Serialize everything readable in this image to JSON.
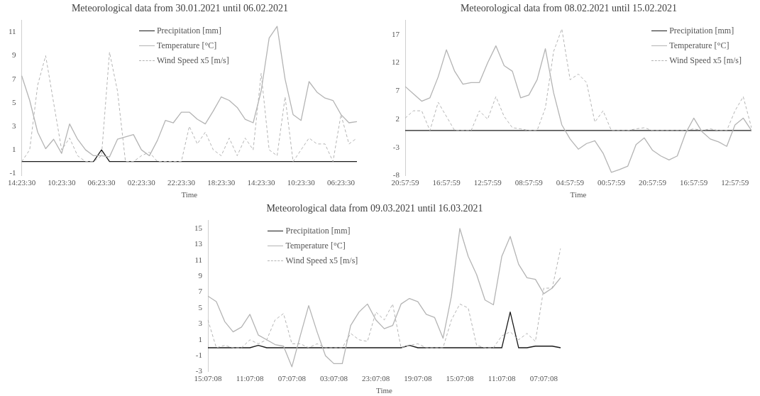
{
  "chart_data": [
    {
      "type": "line",
      "title": "Meteorological data from 30.01.2021 until 06.02.2021",
      "xlabel": "Time",
      "legend": "top",
      "ylim": [
        -1.2,
        12
      ],
      "yticks": [
        -1,
        1,
        3,
        5,
        7,
        9,
        11
      ],
      "categories": [
        "14:23:30",
        null,
        null,
        null,
        null,
        "10:23:30",
        null,
        null,
        null,
        null,
        "06:23:30",
        null,
        null,
        null,
        null,
        "02:23:30",
        null,
        null,
        null,
        null,
        "22:23:30",
        null,
        null,
        null,
        null,
        "18:23:30",
        null,
        null,
        null,
        null,
        "14:23:30",
        null,
        null,
        null,
        null,
        "10:23:30",
        null,
        null,
        null,
        null,
        "06:23:30",
        null,
        null
      ],
      "series": [
        {
          "name": "Precipitation [mm]",
          "color": "#1a1a1a",
          "line_style": "solid",
          "values": [
            0,
            0,
            0,
            0,
            0,
            0,
            0,
            0,
            0,
            0,
            1.0,
            0,
            0,
            0,
            0,
            0,
            0,
            0,
            0,
            0,
            0,
            0,
            0,
            0,
            0,
            0,
            0,
            0,
            0,
            0,
            0,
            0,
            0,
            0,
            0,
            0,
            0,
            0,
            0,
            0,
            0,
            0,
            0
          ]
        },
        {
          "name": "Temperature [°C]",
          "color": "#b4b4b4",
          "line_style": "solid",
          "values": [
            7.3,
            5.2,
            2.5,
            1.1,
            1.9,
            0.7,
            3.2,
            1.9,
            1.0,
            0.5,
            0.5,
            0.4,
            1.9,
            2.1,
            2.3,
            1.0,
            0.5,
            1.8,
            3.5,
            3.3,
            4.2,
            4.2,
            3.6,
            3.2,
            4.3,
            5.5,
            5.2,
            4.6,
            3.6,
            3.3,
            6.0,
            10.5,
            11.5,
            7.0,
            4.0,
            3.5,
            6.8,
            5.9,
            5.4,
            5.2,
            4.0,
            3.3,
            3.4
          ]
        },
        {
          "name": "Wind Speed x5 [m/s]",
          "color": "#b4b4b4",
          "line_style": "dashed",
          "values": [
            0,
            1.0,
            6.5,
            9,
            5,
            1,
            2,
            0.5,
            0,
            0,
            0.5,
            9.3,
            6,
            0,
            0,
            0.5,
            0.8,
            0,
            0,
            0,
            0,
            3,
            1.5,
            2.5,
            1,
            0.5,
            2,
            0.5,
            2,
            1,
            7.5,
            1.0,
            0.5,
            5.5,
            0,
            1.0,
            2.0,
            1.5,
            1.5,
            0,
            4,
            1.5,
            2.0
          ]
        }
      ]
    },
    {
      "type": "line",
      "title": "Meteorological data from 08.02.2021 until 15.02.2021",
      "xlabel": "Time",
      "legend": "top right",
      "ylim": [
        -8,
        19.5
      ],
      "yticks": [
        -8,
        -3,
        2,
        7,
        12,
        17
      ],
      "categories": [
        "20:57:59",
        null,
        null,
        null,
        null,
        "16:57:59",
        null,
        null,
        null,
        null,
        "12:57:59",
        null,
        null,
        null,
        null,
        "08:57:59",
        null,
        null,
        null,
        null,
        "04:57:59",
        null,
        null,
        null,
        null,
        "00:57:59",
        null,
        null,
        null,
        null,
        "20:57:59",
        null,
        null,
        null,
        null,
        "16:57:59",
        null,
        null,
        null,
        null,
        "12:57:59",
        null,
        null
      ],
      "series": [
        {
          "name": "Precipitation [mm]",
          "color": "#1a1a1a",
          "line_style": "solid",
          "values": [
            0,
            0,
            0,
            0,
            0,
            0,
            0,
            0,
            0,
            0,
            0,
            0,
            0,
            0,
            0,
            0,
            0,
            0,
            0,
            0,
            0,
            0,
            0,
            0,
            0,
            0,
            0,
            0,
            0,
            0,
            0,
            0,
            0,
            0,
            0,
            0,
            0,
            0,
            0,
            0,
            0,
            0,
            0
          ]
        },
        {
          "name": "Temperature [°C]",
          "color": "#b4b4b4",
          "line_style": "solid",
          "values": [
            7.8,
            6.5,
            5.2,
            5.8,
            9.5,
            14.3,
            10.5,
            8.2,
            8.5,
            8.5,
            12,
            15.0,
            11.5,
            10.5,
            5.8,
            6.3,
            9.0,
            14.5,
            6.7,
            1.0,
            -1.5,
            -3.3,
            -2.3,
            -1.8,
            -4.0,
            -7.4,
            -6.9,
            -6.3,
            -2.5,
            -1.3,
            -3.5,
            -4.5,
            -5.2,
            -4.5,
            -0.5,
            2.2,
            -0.2,
            -1.5,
            -2.0,
            -2.8,
            1.0,
            2.2,
            0
          ]
        },
        {
          "name": "Wind Speed x5 [m/s]",
          "color": "#b4b4b4",
          "line_style": "dashed",
          "values": [
            2.2,
            3.5,
            3.5,
            0,
            5.0,
            2.5,
            0,
            0,
            0,
            3.5,
            2.0,
            6,
            2.5,
            0.5,
            0.3,
            0,
            0,
            4,
            14,
            18,
            9,
            10,
            8.5,
            1.5,
            3.5,
            0,
            0,
            0,
            0.3,
            0.5,
            0,
            0,
            0,
            0,
            0,
            0.3,
            0,
            0.3,
            0,
            0,
            3.5,
            6,
            0.5
          ]
        }
      ]
    },
    {
      "type": "line",
      "title": "Meteorological data from 09.03.2021 until 16.03.2021",
      "xlabel": "Time",
      "legend": "top left",
      "ylim": [
        -3,
        16
      ],
      "yticks": [
        -3,
        -1,
        1,
        3,
        5,
        7,
        9,
        11,
        13,
        15
      ],
      "categories": [
        "15:07:08",
        null,
        null,
        null,
        null,
        "11:07:08",
        null,
        null,
        null,
        null,
        "07:07:08",
        null,
        null,
        null,
        null,
        "03:07:08",
        null,
        null,
        null,
        null,
        "23:07:08",
        null,
        null,
        null,
        null,
        "19:07:08",
        null,
        null,
        null,
        null,
        "15:07:08",
        null,
        null,
        null,
        null,
        "11:07:08",
        null,
        null,
        null,
        null,
        "07:07:08",
        null,
        null
      ],
      "series": [
        {
          "name": "Precipitation [mm]",
          "color": "#1a1a1a",
          "line_style": "solid",
          "values": [
            0,
            0,
            0,
            0,
            0,
            0,
            0.3,
            0,
            0,
            0,
            0,
            0,
            0,
            0,
            0,
            0,
            0,
            0,
            0,
            0,
            0,
            0,
            0,
            0,
            0.3,
            0,
            0,
            0,
            0,
            0,
            0,
            0,
            0,
            0,
            0,
            0,
            4.5,
            0,
            0,
            0.2,
            0.2,
            0.2,
            0
          ]
        },
        {
          "name": "Temperature [°C]",
          "color": "#b4b4b4",
          "line_style": "solid",
          "values": [
            6.5,
            5.8,
            3.3,
            2.0,
            2.6,
            4.2,
            1.6,
            1.0,
            0.4,
            0.2,
            -2.4,
            1.5,
            5.3,
            2.0,
            -1.0,
            -2.0,
            -2.0,
            2.8,
            4.5,
            5.5,
            3.5,
            2.4,
            2.8,
            5.5,
            6.2,
            5.8,
            4.2,
            3.8,
            1.2,
            6.5,
            15.0,
            11.5,
            9.2,
            6.0,
            5.4,
            11.5,
            14.0,
            10.5,
            8.8,
            8.6,
            6.8,
            7.5,
            8.8
          ]
        },
        {
          "name": "Wind Speed x5 [m/s]",
          "color": "#b4b4b4",
          "line_style": "dashed",
          "values": [
            3.5,
            0,
            0.3,
            0,
            0,
            1.0,
            0.5,
            1.0,
            3.5,
            4.3,
            0.5,
            0.5,
            0,
            0.5,
            0,
            0,
            0,
            1.8,
            1.0,
            0.8,
            4.5,
            3.5,
            5.5,
            0,
            0.3,
            0.5,
            0,
            0,
            0,
            3.5,
            5.5,
            5.0,
            0.3,
            0,
            0,
            1.5,
            2.0,
            1.0,
            1.8,
            0.8,
            7.5,
            7.5,
            12.5
          ]
        }
      ]
    }
  ]
}
